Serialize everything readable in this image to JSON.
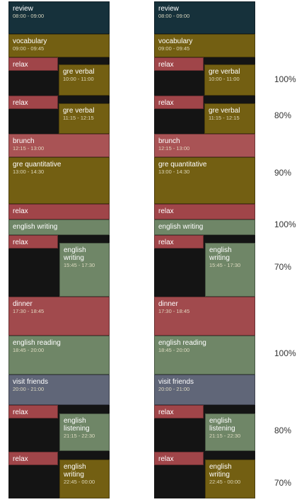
{
  "schedule": {
    "review": {
      "title": "review",
      "time": "08:00 - 09:00"
    },
    "vocabulary": {
      "title": "vocabulary",
      "time": "09:00 - 09:45"
    },
    "relax": "relax",
    "gre_verbal_1": {
      "title": "gre verbal",
      "time": "10:00 - 11:00"
    },
    "gre_verbal_2": {
      "title": "gre verbal",
      "time": "11:15 - 12:15"
    },
    "brunch": {
      "title": "brunch",
      "time": "12:15 - 13:00"
    },
    "gre_quant": {
      "title": "gre quantitative",
      "time": "13:00 - 14:30"
    },
    "english_writing_bar": {
      "title": "english writing"
    },
    "english_writing_2": {
      "title": "english writing",
      "time": "15:45 - 17:30"
    },
    "dinner": {
      "title": "dinner",
      "time": "17:30 - 18:45"
    },
    "english_reading": {
      "title": "english reading",
      "time": "18:45 - 20:00"
    },
    "visit_friends": {
      "title": "visit friends",
      "time": "20:00 - 21:00"
    },
    "english_listening": {
      "title": "english listening",
      "time": "21:15 - 22:30"
    },
    "english_writing_3": {
      "title": "english writing",
      "time": "22:45 - 00:00"
    }
  },
  "percentages": [
    "100%",
    "80%",
    "90%",
    "100%",
    "70%",
    "100%",
    "80%",
    "70%"
  ],
  "colors": {
    "review": "#16313b",
    "study_gold": "#735f12",
    "relax": "#a04549",
    "english": "#6f8667",
    "friends": "#606678"
  }
}
